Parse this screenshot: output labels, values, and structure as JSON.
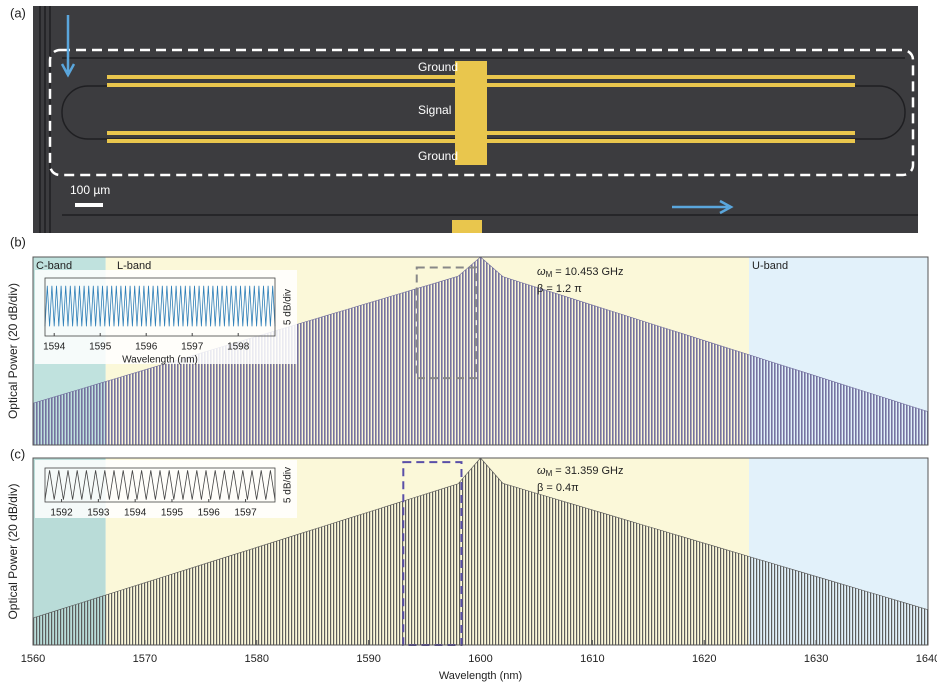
{
  "micrograph": {
    "panel": "(a)",
    "labels": [
      "Ground",
      "Signal",
      "Ground"
    ],
    "scale_bar": "100 µm"
  },
  "chart_data": [
    {
      "type": "area",
      "panel": "(b)",
      "ylabel": "Optical Power (20 dB/div)",
      "xlim": [
        1560,
        1640
      ],
      "ylim": [
        -90,
        0
      ],
      "bands": [
        {
          "name": "C-band",
          "from": 1560,
          "to": 1566.5,
          "color": "#c0e2de"
        },
        {
          "name": "L-band",
          "from": 1566.5,
          "to": 1624,
          "color": "#fbf8d9"
        },
        {
          "name": "U-band",
          "from": 1624,
          "to": 1640,
          "color": "#e2f1fa"
        }
      ],
      "x": [
        1560,
        1562,
        1564,
        1566,
        1568,
        1570,
        1572,
        1574,
        1576,
        1578,
        1580,
        1582,
        1584,
        1586,
        1588,
        1590,
        1592,
        1594,
        1596,
        1598,
        1600,
        1602,
        1604,
        1606,
        1608,
        1610,
        1612,
        1614,
        1616,
        1618,
        1620,
        1622,
        1624,
        1626,
        1628,
        1630,
        1632,
        1634,
        1636,
        1638,
        1640
      ],
      "series": [
        {
          "color": "#6f6c9c",
          "values": [
            -70,
            -66.8,
            -63.6,
            -60.4,
            -57.2,
            -54,
            -50.8,
            -47.6,
            -44.4,
            -41.2,
            -38,
            -34.8,
            -31.6,
            -28.4,
            -25.2,
            -22,
            -18.8,
            -15.6,
            -12.4,
            -9.2,
            0,
            -9.4,
            -12.8,
            -16.2,
            -19.6,
            -23,
            -26.4,
            -29.8,
            -33.2,
            -36.6,
            -40,
            -43.4,
            -46.8,
            -50.2,
            -53.6,
            -57,
            -60.4,
            -63.8,
            -67.2,
            -70.6,
            -74
          ]
        }
      ],
      "zoom_box": {
        "x": [
          1594.3,
          1599.6
        ],
        "y": [
          -58,
          -5
        ],
        "color": "#888888"
      },
      "annotations": [
        {
          "symbol": "ω",
          "sub": "M",
          "text": " = 10.453 GHz"
        },
        {
          "text": "β = 1.2 π"
        }
      ],
      "inset": {
        "xlim": [
          1593.8,
          1598.8
        ],
        "ylim": [
          -30,
          0
        ],
        "xticks": [
          1594,
          1595,
          1596,
          1597,
          1598
        ],
        "xlabel": "Wavelength (nm)",
        "ylabel": "5 dB/div",
        "color": "#2f7fb8",
        "x": [
          1593.8,
          1593.85,
          1593.9,
          1593.95,
          1594,
          1594.05,
          1594.1,
          1594.15,
          1594.2,
          1594.25,
          1594.3,
          1594.35,
          1594.4,
          1594.45,
          1594.5,
          1594.55,
          1594.6,
          1594.65,
          1594.7,
          1594.75,
          1594.8,
          1594.85,
          1594.9,
          1594.95,
          1595,
          1595.05,
          1595.1,
          1595.15,
          1595.2,
          1595.25,
          1595.3,
          1595.35,
          1595.4,
          1595.45,
          1595.5,
          1595.55,
          1595.6,
          1595.65,
          1595.7,
          1595.75,
          1595.8,
          1595.85,
          1595.9,
          1595.95,
          1596,
          1596.05,
          1596.1,
          1596.15,
          1596.2,
          1596.25,
          1596.3,
          1596.35,
          1596.4,
          1596.45,
          1596.5,
          1596.55,
          1596.6,
          1596.65,
          1596.7,
          1596.75,
          1596.8,
          1596.85,
          1596.9,
          1596.95,
          1597,
          1597.05,
          1597.1,
          1597.15,
          1597.2,
          1597.25,
          1597.3,
          1597.35,
          1597.4,
          1597.45,
          1597.5,
          1597.55,
          1597.6,
          1597.65,
          1597.7,
          1597.75,
          1597.8,
          1597.85,
          1597.9,
          1597.95,
          1598,
          1598.05,
          1598.1,
          1598.15,
          1598.2,
          1598.25,
          1598.3,
          1598.35,
          1598.4,
          1598.45,
          1598.5,
          1598.55,
          1598.6,
          1598.65,
          1598.7,
          1598.75,
          1598.8
        ],
        "values": [
          -25,
          -4,
          -25,
          -4,
          -25,
          -4,
          -25,
          -4,
          -25,
          -4,
          -25,
          -4,
          -25,
          -4,
          -25,
          -4,
          -25,
          -4,
          -25,
          -4,
          -25,
          -4,
          -25,
          -4,
          -25,
          -4,
          -25,
          -4,
          -25,
          -4,
          -25,
          -4,
          -25,
          -4,
          -25,
          -4,
          -25,
          -4,
          -25,
          -4,
          -25,
          -4,
          -25,
          -4,
          -25,
          -4,
          -25,
          -4,
          -25,
          -4,
          -25,
          -4,
          -25,
          -4,
          -25,
          -4,
          -25,
          -4,
          -25,
          -4,
          -25,
          -4,
          -25,
          -4,
          -25,
          -4,
          -25,
          -4,
          -25,
          -4,
          -25,
          -4,
          -25,
          -4,
          -25,
          -4,
          -25,
          -4,
          -25,
          -4,
          -25,
          -4,
          -25,
          -4,
          -25,
          -4,
          -25,
          -4,
          -25,
          -4,
          -25,
          -4,
          -25,
          -4,
          -25,
          -4,
          -25,
          -4,
          -25,
          -4,
          -25
        ]
      }
    },
    {
      "type": "area",
      "panel": "(c)",
      "ylabel": "Optical Power (20 dB/div)",
      "xlabel": "Wavelength (nm)",
      "xlim": [
        1560,
        1640
      ],
      "ylim": [
        -90,
        0
      ],
      "xticks": [
        1560,
        1570,
        1580,
        1590,
        1600,
        1610,
        1620,
        1630,
        1640
      ],
      "bands": [
        {
          "from": 1560,
          "to": 1566.5,
          "color": "#b9dcd8"
        },
        {
          "from": 1566.5,
          "to": 1624,
          "color": "#fbf8d9"
        },
        {
          "from": 1624,
          "to": 1640,
          "color": "#e2f1fa"
        }
      ],
      "x": [
        1560,
        1562,
        1564,
        1566,
        1568,
        1570,
        1572,
        1574,
        1576,
        1578,
        1580,
        1582,
        1584,
        1586,
        1588,
        1590,
        1592,
        1594,
        1596,
        1598,
        1600,
        1602,
        1604,
        1606,
        1608,
        1610,
        1612,
        1614,
        1616,
        1618,
        1620,
        1622,
        1624,
        1626,
        1628,
        1630,
        1632,
        1634,
        1636,
        1638,
        1640
      ],
      "series": [
        {
          "color": "#555555",
          "values": [
            -77,
            -73.6,
            -70.2,
            -66.8,
            -63.4,
            -60,
            -56.6,
            -53.2,
            -49.8,
            -46.4,
            -43,
            -39.6,
            -36.2,
            -32.8,
            -29.4,
            -26,
            -22.6,
            -19.2,
            -15.8,
            -12.4,
            0,
            -12.2,
            -15.4,
            -18.6,
            -21.8,
            -25,
            -28.2,
            -31.4,
            -34.6,
            -37.8,
            -41,
            -44.2,
            -47.4,
            -50.6,
            -53.8,
            -57,
            -60.2,
            -63.4,
            -66.6,
            -69.8,
            -73
          ]
        }
      ],
      "zoom_box": {
        "x": [
          1593.1,
          1598.3
        ],
        "y": [
          -90,
          -2
        ],
        "color": "#5a4fa8"
      },
      "annotations": [
        {
          "symbol": "ω",
          "sub": "M",
          "text": " = 31.359 GHz"
        },
        {
          "text": "β = 0.4π"
        }
      ],
      "inset": {
        "xlim": [
          1591.55,
          1597.8
        ],
        "ylim": [
          -30,
          0
        ],
        "xticks": [
          1592,
          1593,
          1594,
          1595,
          1596,
          1597
        ],
        "ylabel": "5 dB/div",
        "color": "#444444",
        "x": [
          1591.55,
          1591.675,
          1591.8,
          1591.925,
          1592.05,
          1592.175,
          1592.3,
          1592.425,
          1592.55,
          1592.675,
          1592.8,
          1592.925,
          1593.05,
          1593.175,
          1593.3,
          1593.425,
          1593.55,
          1593.675,
          1593.8,
          1593.925,
          1594.05,
          1594.175,
          1594.3,
          1594.425,
          1594.55,
          1594.675,
          1594.8,
          1594.925,
          1595.05,
          1595.175,
          1595.3,
          1595.425,
          1595.55,
          1595.675,
          1595.8,
          1595.925,
          1596.05,
          1596.175,
          1596.3,
          1596.425,
          1596.55,
          1596.675,
          1596.8,
          1596.925,
          1597.05,
          1597.175,
          1597.3,
          1597.425,
          1597.55,
          1597.675,
          1597.8
        ],
        "values": [
          -28,
          -2,
          -28,
          -2,
          -28,
          -2,
          -28,
          -2,
          -28,
          -2,
          -28,
          -2,
          -28,
          -2,
          -28,
          -2,
          -28,
          -2,
          -28,
          -2,
          -28,
          -2,
          -28,
          -2,
          -28,
          -2,
          -28,
          -2,
          -28,
          -2,
          -28,
          -2,
          -28,
          -2,
          -28,
          -2,
          -28,
          -2,
          -28,
          -2,
          -28,
          -2,
          -28,
          -2,
          -28,
          -2,
          -28,
          -2,
          -28,
          -2,
          -28
        ]
      }
    }
  ]
}
